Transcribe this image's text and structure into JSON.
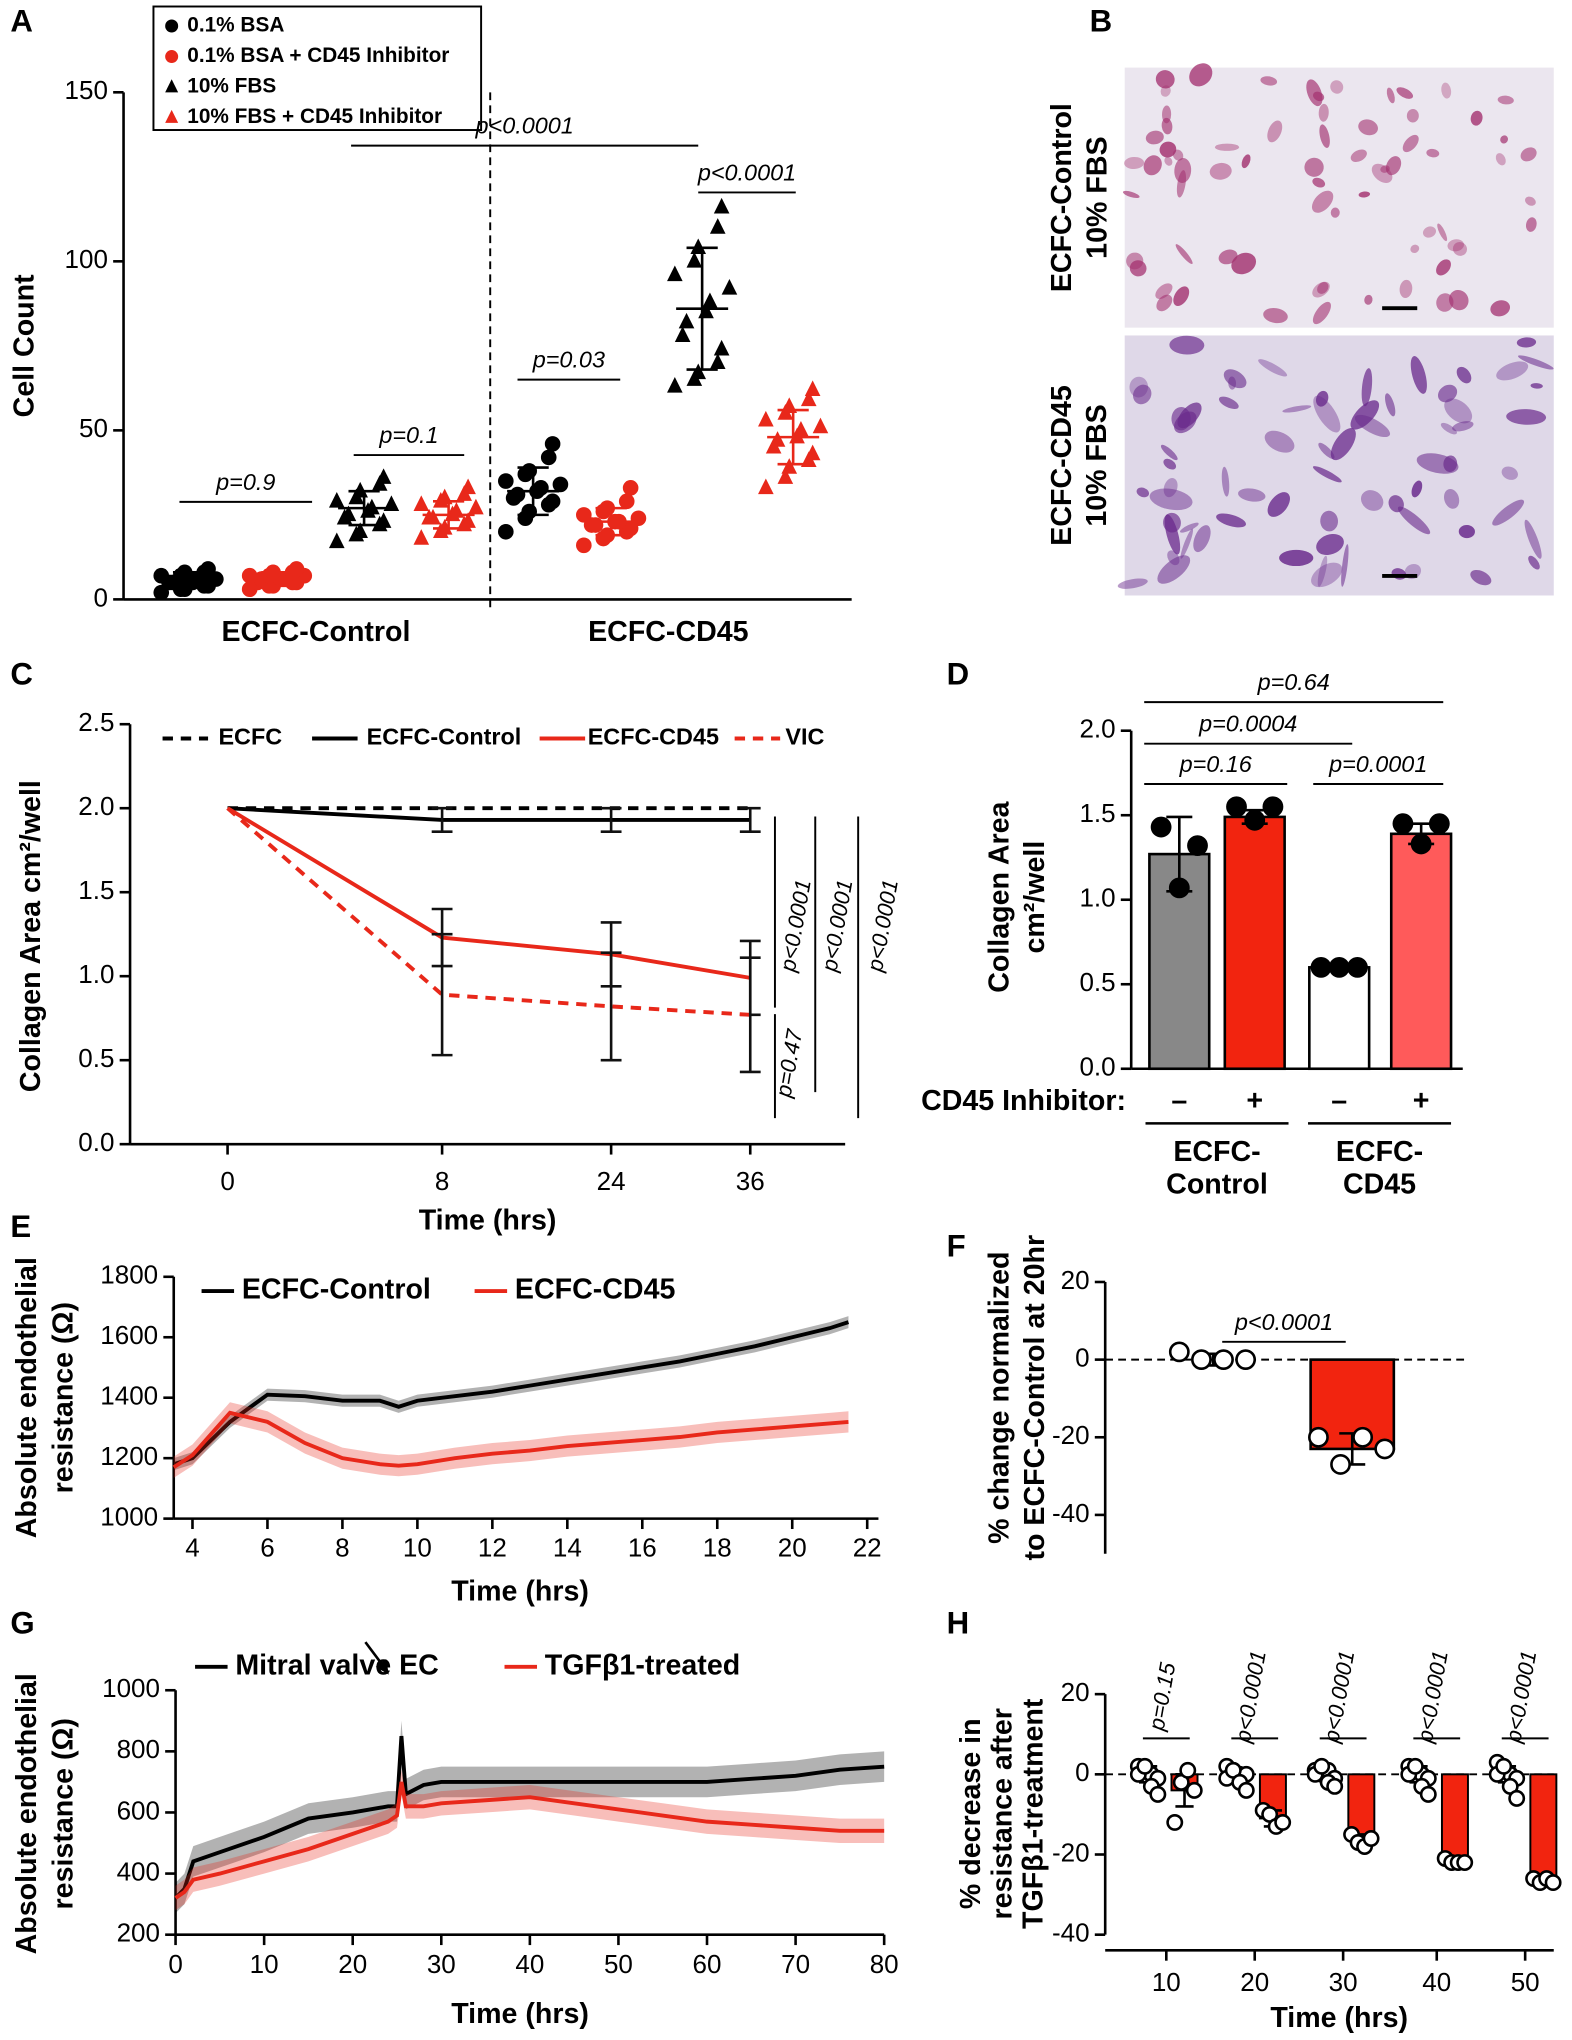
{
  "panel_labels": [
    "A",
    "B",
    "C",
    "D",
    "E",
    "F",
    "G",
    "H"
  ],
  "panel_b": {
    "rows": [
      [
        "ECFC-Control",
        "10% FBS"
      ],
      [
        "ECFC-CD45",
        "10% FBS"
      ]
    ]
  },
  "chart_data": [
    {
      "type": "scatter",
      "ylabel": "Cell Count",
      "categories": [
        "ECFC-Control",
        "ECFC-CD45"
      ],
      "ylim": [
        0,
        150
      ],
      "yticks": [
        0,
        50,
        100,
        150
      ],
      "series": [
        {
          "name": "0.1% BSA",
          "color": "#000000",
          "marker": "circle",
          "values": [
            [
              2,
              3,
              3,
              4,
              4,
              5,
              5,
              5,
              6,
              6,
              7,
              7,
              8,
              8,
              9
            ],
            [
              20,
              24,
              26,
              28,
              29,
              30,
              31,
              32,
              33,
              34,
              35,
              37,
              38,
              42,
              46
            ]
          ],
          "mean": [
            6,
            32
          ],
          "sd": [
            2,
            7
          ]
        },
        {
          "name": "0.1% BSA + CD45 Inhibitor",
          "color": "#e8281a",
          "marker": "circle",
          "values": [
            [
              3,
              4,
              4,
              5,
              5,
              5,
              6,
              6,
              6,
              7,
              7,
              7,
              8,
              8,
              9
            ],
            [
              16,
              18,
              19,
              20,
              21,
              22,
              22,
              23,
              23,
              24,
              25,
              26,
              27,
              29,
              33
            ]
          ],
          "mean": [
            6,
            23
          ],
          "sd": [
            2,
            4
          ]
        },
        {
          "name": "10% FBS",
          "color": "#000000",
          "marker": "triangle",
          "values": [
            [
              17,
              19,
              20,
              22,
              23,
              24,
              25,
              26,
              27,
              28,
              29,
              30,
              32,
              34,
              36
            ],
            [
              63,
              65,
              67,
              70,
              74,
              78,
              82,
              85,
              88,
              92,
              96,
              100,
              104,
              110,
              116
            ]
          ],
          "mean": [
            27,
            86
          ],
          "sd": [
            5,
            18
          ]
        },
        {
          "name": "10% FBS + CD45 Inhibitor",
          "color": "#e8281a",
          "marker": "triangle",
          "values": [
            [
              18,
              20,
              21,
              22,
              23,
              24,
              24,
              25,
              26,
              27,
              28,
              29,
              30,
              31,
              33
            ],
            [
              33,
              36,
              39,
              41,
              43,
              45,
              47,
              48,
              50,
              51,
              53,
              55,
              57,
              59,
              62
            ]
          ],
          "mean": [
            25,
            48
          ],
          "sd": [
            4,
            8
          ]
        }
      ],
      "annotations": [
        "p=0.9",
        "p=0.1",
        "p=0.03",
        "p<0.0001",
        "p<0.0001"
      ]
    },
    {
      "type": "line",
      "xlabel": "Time (hrs)",
      "ylabel": "Collagen Area cm²/well",
      "categories": [
        0,
        8,
        24,
        36
      ],
      "ylim": [
        0,
        2.5
      ],
      "yticks": [
        {
          "value": 0,
          "label": "0.0"
        },
        0.5,
        {
          "value": 1,
          "label": "1.0"
        },
        1.5,
        {
          "value": 2,
          "label": "2.0"
        },
        2.5
      ],
      "series": [
        {
          "name": "ECFC",
          "color": "#000000",
          "dashed": true,
          "values": [
            2.0,
            2.0,
            2.0,
            2.0
          ]
        },
        {
          "name": "ECFC-Control",
          "color": "#000000",
          "dashed": false,
          "values": [
            2.0,
            1.93,
            1.93,
            1.93
          ],
          "error": [
            0,
            0.07,
            0.07,
            0.07
          ]
        },
        {
          "name": "ECFC-CD45",
          "color": "#e8281a",
          "dashed": false,
          "values": [
            2.0,
            1.23,
            1.13,
            0.99
          ],
          "error": [
            0,
            0.17,
            0.19,
            0.22
          ]
        },
        {
          "name": "VIC",
          "color": "#e8281a",
          "dashed": true,
          "values": [
            2.0,
            0.89,
            0.82,
            0.77
          ],
          "error": [
            0,
            0.36,
            0.32,
            0.34
          ]
        }
      ],
      "annotations": [
        "p<0.0001",
        "p<0.0001",
        "p<0.0001",
        "p=0.47"
      ]
    },
    {
      "type": "bar",
      "ylabel": [
        "Collagen Area",
        "cm²/well"
      ],
      "row_label": "CD45 Inhibitor:",
      "categories": [
        "–",
        "+",
        "–",
        "+"
      ],
      "groups": [
        [
          "ECFC-",
          "Control"
        ],
        [
          "ECFC-",
          "CD45"
        ]
      ],
      "ylim": [
        0,
        2
      ],
      "yticks": [
        {
          "value": 0,
          "label": "0.0"
        },
        0.5,
        {
          "value": 1,
          "label": "1.0"
        },
        1.5,
        {
          "value": 2,
          "label": "2.0"
        }
      ],
      "values": [
        1.27,
        1.49,
        0.6,
        1.39
      ],
      "error": [
        0.22,
        0.04,
        0.01,
        0.06
      ],
      "points": [
        [
          1.43,
          1.07,
          1.32
        ],
        [
          1.55,
          1.47,
          1.55
        ],
        [
          0.6,
          0.6,
          0.6
        ],
        [
          1.45,
          1.33,
          1.45
        ]
      ],
      "colors": [
        "#888888",
        "#f2240f",
        "#ffffff",
        "#ff5a5a"
      ],
      "point_fill": "#000000",
      "annotations": [
        "p=0.64",
        "p=0.0004",
        "p=0.16",
        "p=0.0001"
      ]
    },
    {
      "type": "line",
      "xlabel": "Time (hrs)",
      "ylabel": [
        "Absolute endothelial",
        "resistance (Ω)"
      ],
      "x": [
        3.5,
        4,
        5,
        6,
        7,
        8,
        9,
        9.5,
        10,
        11,
        12,
        13,
        14,
        15,
        16,
        17,
        18,
        19,
        20,
        21,
        21.5
      ],
      "xlim": [
        3.5,
        22.3
      ],
      "xticks": [
        4,
        6,
        8,
        10,
        12,
        14,
        16,
        18,
        20,
        22
      ],
      "ylim": [
        1000,
        1800
      ],
      "yticks": [
        1000,
        1200,
        1400,
        1600,
        1800
      ],
      "series": [
        {
          "name": "ECFC-Control",
          "color": "#000000",
          "values": [
            1180,
            1200,
            1320,
            1410,
            1405,
            1390,
            1390,
            1370,
            1390,
            1405,
            1420,
            1440,
            1460,
            1480,
            1500,
            1520,
            1545,
            1570,
            1600,
            1630,
            1650
          ],
          "error": [
            20,
            20,
            20,
            20,
            20,
            20,
            20,
            20,
            20,
            20,
            20,
            20,
            20,
            20,
            20,
            20,
            20,
            20,
            20,
            20,
            20
          ]
        },
        {
          "name": "ECFC-CD45",
          "color": "#e8281a",
          "values": [
            1170,
            1210,
            1350,
            1320,
            1250,
            1200,
            1180,
            1175,
            1180,
            1200,
            1215,
            1225,
            1240,
            1250,
            1260,
            1270,
            1285,
            1295,
            1305,
            1315,
            1320
          ],
          "error": [
            35,
            35,
            35,
            35,
            35,
            35,
            35,
            35,
            35,
            35,
            35,
            35,
            35,
            35,
            35,
            35,
            35,
            35,
            35,
            35,
            35
          ]
        }
      ]
    },
    {
      "type": "bar",
      "ylabel": [
        "% change normalized",
        "to ECFC-Control at 20hr"
      ],
      "categories": [
        null,
        null
      ],
      "ylim": [
        -50,
        20
      ],
      "yticks": [
        -40,
        -20,
        0,
        20
      ],
      "values": [
        0,
        -23
      ],
      "error": [
        1.5,
        4
      ],
      "points": [
        [
          2,
          0,
          0,
          0
        ],
        [
          -20,
          -27,
          -20,
          -23
        ]
      ],
      "colors": [
        "#ffffff",
        "#f2240f"
      ],
      "point_fill": "#ffffff",
      "zero_line": true,
      "annotations": [
        "p<0.0001"
      ]
    },
    {
      "type": "line",
      "xlabel": "Time (hrs)",
      "ylabel": [
        "Absolute endothelial",
        "resistance (Ω)"
      ],
      "x": [
        0,
        1,
        2,
        5,
        10,
        15,
        20,
        24,
        25,
        25.5,
        26,
        28,
        30,
        35,
        40,
        45,
        50,
        55,
        60,
        65,
        70,
        75,
        80
      ],
      "xlim": [
        0,
        80
      ],
      "xticks": [
        0,
        10,
        20,
        30,
        40,
        50,
        60,
        70,
        80
      ],
      "ylim": [
        200,
        1000
      ],
      "yticks": [
        200,
        400,
        600,
        800,
        1000
      ],
      "series": [
        {
          "name": "Mitral valve EC",
          "color": "#000000",
          "values": [
            320,
            350,
            440,
            470,
            520,
            580,
            600,
            620,
            620,
            850,
            660,
            690,
            700,
            700,
            700,
            700,
            700,
            700,
            700,
            710,
            720,
            740,
            750
          ],
          "error": [
            50,
            50,
            50,
            50,
            50,
            50,
            50,
            50,
            50,
            50,
            50,
            50,
            50,
            50,
            50,
            50,
            50,
            50,
            50,
            50,
            50,
            50,
            50
          ]
        },
        {
          "name": "TGFβ1-treated",
          "color": "#e8281a",
          "values": [
            320,
            340,
            380,
            400,
            440,
            480,
            530,
            570,
            590,
            700,
            620,
            620,
            630,
            640,
            650,
            630,
            610,
            590,
            570,
            560,
            550,
            540,
            540
          ],
          "error": [
            40,
            40,
            40,
            40,
            40,
            40,
            40,
            40,
            40,
            40,
            40,
            40,
            40,
            40,
            40,
            40,
            40,
            40,
            40,
            40,
            40,
            40,
            40
          ]
        }
      ]
    },
    {
      "type": "bar",
      "xlabel": "Time (hrs)",
      "ylabel": [
        "% decrease in",
        "resistance after",
        "TGFβ1-treatment"
      ],
      "categories": [
        10,
        20,
        30,
        40,
        50
      ],
      "ylim": [
        -40,
        20
      ],
      "yticks": [
        -40,
        -20,
        0,
        20
      ],
      "zero_line": true,
      "point_fill": "#ffffff",
      "series": [
        {
          "color": "#ffffff",
          "values": [
            0,
            0,
            0,
            0,
            0
          ],
          "error": [
            2,
            1.5,
            1.5,
            2,
            2
          ],
          "points": [
            [
              2,
              1,
              0,
              -1,
              0,
              2,
              -3,
              -5
            ],
            [
              2,
              1,
              0,
              0,
              -1,
              1,
              -2,
              -4
            ],
            [
              1,
              0,
              1,
              -1,
              0,
              2,
              -2,
              -3
            ],
            [
              2,
              1,
              0,
              -1,
              0,
              2,
              -3,
              -5
            ],
            [
              3,
              1,
              0,
              -1,
              0,
              2,
              -3,
              -6
            ]
          ]
        },
        {
          "color": "#f2240f",
          "values": [
            -4,
            -11,
            -16,
            -21,
            -26.5
          ],
          "error": [
            4,
            2,
            1,
            0.5,
            0.5
          ],
          "points": [
            [
              -12,
              -2,
              1,
              -4
            ],
            [
              -9,
              -10,
              -13,
              -12
            ],
            [
              -15,
              -17,
              -18,
              -16
            ],
            [
              -21,
              -22,
              -22,
              -22
            ],
            [
              -26,
              -27,
              -26,
              -27
            ]
          ]
        }
      ],
      "annotations": [
        "p=0.15",
        "p<0.0001",
        "p<0.0001",
        "p<0.0001",
        "p<0.0001"
      ]
    }
  ]
}
